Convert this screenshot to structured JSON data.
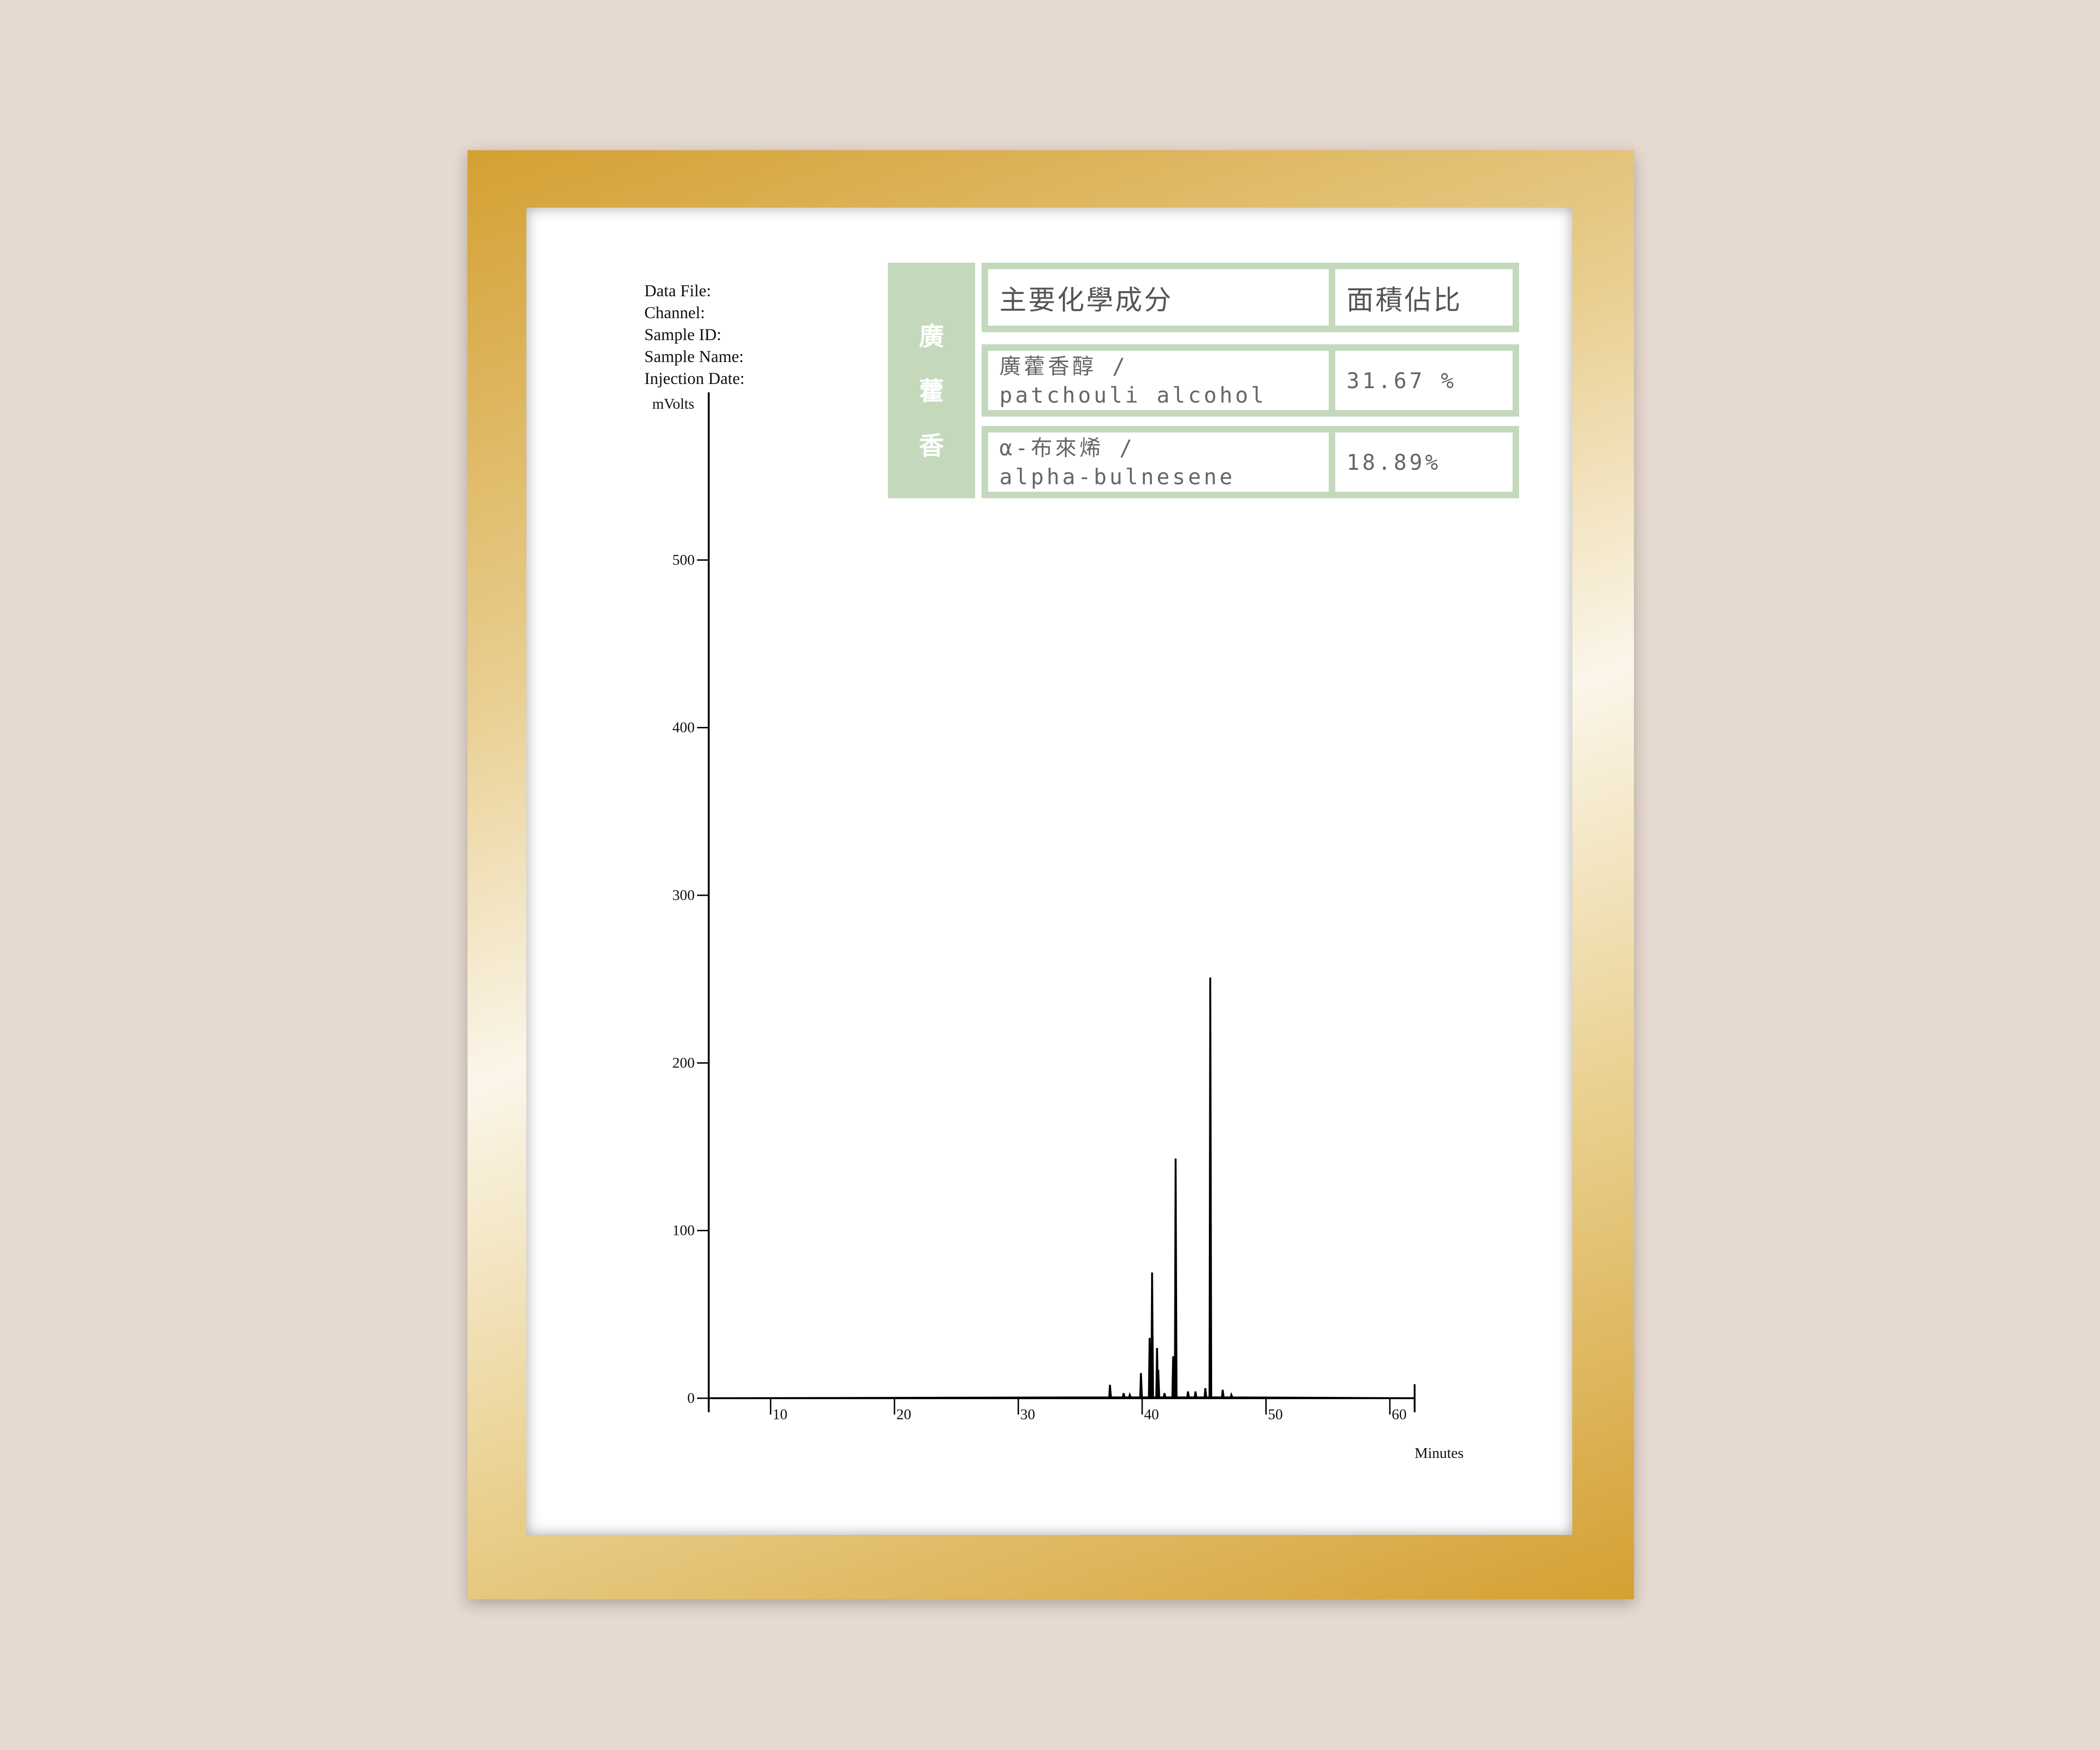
{
  "meta_labels": [
    "Data File:",
    "Channel:",
    "Sample ID:",
    "Sample Name:",
    "Injection Date:"
  ],
  "table": {
    "side_label": [
      "廣",
      "藿",
      "香"
    ],
    "header": {
      "component": "主要化學成分",
      "area": "面積佔比"
    },
    "rows": [
      {
        "zh": "廣藿香醇 /",
        "en": "patchouli alcohol",
        "area": "31.67 %"
      },
      {
        "zh": "α-布來烯 /",
        "en": "alpha-bulnesene",
        "area": "18.89%"
      }
    ],
    "colors": {
      "green": "#c4d9bc",
      "text": "#555555"
    }
  },
  "chart_data": {
    "type": "line",
    "title": "",
    "xlabel": "Minutes",
    "ylabel": "mVolts",
    "xlim": [
      5,
      62
    ],
    "ylim": [
      0,
      600
    ],
    "xticks": [
      10,
      20,
      30,
      40,
      50,
      60
    ],
    "yticks": [
      0,
      100,
      200,
      300,
      400,
      500
    ],
    "grid": false,
    "peaks": [
      {
        "x": 37.4,
        "y": 8
      },
      {
        "x": 38.5,
        "y": 3
      },
      {
        "x": 39.0,
        "y": 2
      },
      {
        "x": 39.9,
        "y": 15
      },
      {
        "x": 40.6,
        "y": 36
      },
      {
        "x": 40.8,
        "y": 75
      },
      {
        "x": 41.2,
        "y": 30
      },
      {
        "x": 41.3,
        "y": 17
      },
      {
        "x": 41.8,
        "y": 3
      },
      {
        "x": 42.5,
        "y": 25
      },
      {
        "x": 42.7,
        "y": 143
      },
      {
        "x": 43.7,
        "y": 4
      },
      {
        "x": 44.3,
        "y": 4
      },
      {
        "x": 45.1,
        "y": 6
      },
      {
        "x": 45.5,
        "y": 251
      },
      {
        "x": 46.5,
        "y": 5
      },
      {
        "x": 47.2,
        "y": 2
      }
    ],
    "color": "#000000"
  },
  "colors": {
    "background": "#e6d9cf",
    "frame_gold": "#d4a032",
    "frame_cream": "#fbf6ea"
  }
}
